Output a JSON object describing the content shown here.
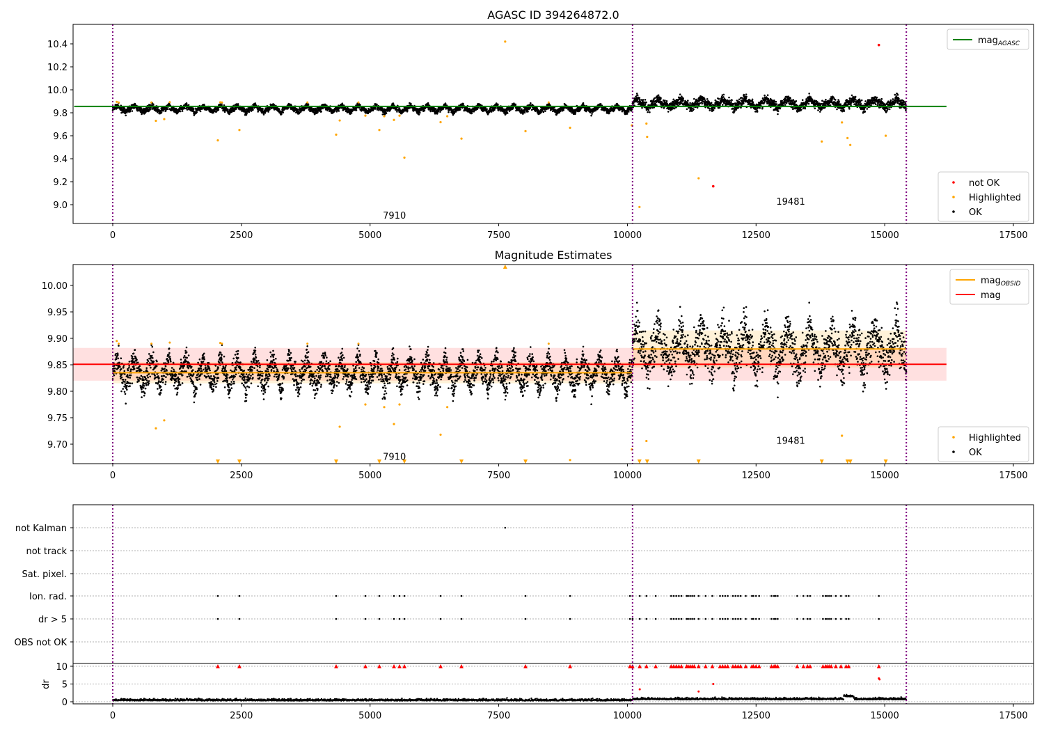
{
  "chart_data": [
    {
      "type": "scatter",
      "title": "AGASC ID 394264872.0",
      "ylim": [
        8.85,
        10.57
      ],
      "xlim": [
        -750,
        17900
      ],
      "yticks": [
        "9.0",
        "9.2",
        "9.4",
        "9.6",
        "9.8",
        "10.0",
        "10.2",
        "10.4"
      ],
      "xticks": [
        "0",
        "2500",
        "5000",
        "7500",
        "10000",
        "12500",
        "15000",
        "17500"
      ],
      "obs_boundaries": [
        0,
        10100,
        15420
      ],
      "obs_labels": [
        {
          "text": "7910",
          "x": 5000,
          "y": 8.91
        },
        {
          "text": "19481",
          "x": 12700,
          "y": 9.03
        }
      ],
      "mag_agasc": 9.855,
      "mag_agasc_xrange": [
        -750,
        16200
      ],
      "legend_top": [
        {
          "label": "mag",
          "sub": "AGASC",
          "color": "#008000"
        }
      ],
      "legend_bottom": [
        {
          "label": "not OK",
          "color": "#ff0000"
        },
        {
          "label": "Highlighted",
          "color": "#ffa500"
        },
        {
          "label": "OK",
          "color": "#000000"
        }
      ],
      "ok_series": {
        "segments": [
          {
            "x": [
              0,
              10100
            ],
            "mean": 9.835,
            "sigma": 0.012,
            "amp": 0.018
          },
          {
            "x": [
              10100,
              15420
            ],
            "mean": 9.88,
            "sigma": 0.02,
            "amp": 0.025
          }
        ]
      },
      "highlighted": [
        [
          838,
          9.73
        ],
        [
          1000,
          9.745
        ],
        [
          2042,
          9.56
        ],
        [
          2461,
          9.65
        ],
        [
          4341,
          9.61
        ],
        [
          4410,
          9.733
        ],
        [
          4909,
          9.775
        ],
        [
          5180,
          9.65
        ],
        [
          5275,
          9.77
        ],
        [
          5464,
          9.738
        ],
        [
          5572,
          9.775
        ],
        [
          5667,
          9.41
        ],
        [
          6370,
          9.718
        ],
        [
          6500,
          9.77
        ],
        [
          6776,
          9.575
        ],
        [
          7625,
          10.42
        ],
        [
          8020,
          9.64
        ],
        [
          8886,
          9.67
        ],
        [
          10087,
          9.69
        ],
        [
          10235,
          8.98
        ],
        [
          10370,
          9.706
        ],
        [
          10384,
          9.59
        ],
        [
          11384,
          9.23
        ],
        [
          13777,
          9.55
        ],
        [
          14169,
          9.716
        ],
        [
          14277,
          9.58
        ],
        [
          14331,
          9.52
        ],
        [
          15020,
          9.6
        ]
      ],
      "not_ok": [
        [
          14886,
          10.39
        ],
        [
          11668,
          9.16
        ]
      ]
    },
    {
      "type": "scatter",
      "title": "Magnitude Estimates",
      "ylim": [
        9.665,
        10.04
      ],
      "yticks": [
        "9.70",
        "9.75",
        "9.80",
        "9.85",
        "9.90",
        "9.95",
        "10.00"
      ],
      "xticks": [
        "0",
        "2500",
        "5000",
        "7500",
        "10000",
        "12500",
        "15000",
        "17500"
      ],
      "mag": 9.851,
      "mag_band": [
        9.82,
        9.882
      ],
      "mag_obsid": [
        {
          "x": [
            0,
            10100
          ],
          "value": 9.835,
          "band": [
            9.815,
            9.855
          ]
        },
        {
          "x": [
            10100,
            15420
          ],
          "value": 9.88,
          "band": [
            9.845,
            9.915
          ]
        }
      ],
      "obs_labels": [
        {
          "text": "7910",
          "x": 5000,
          "y": 9.677
        },
        {
          "text": "19481",
          "x": 12700,
          "y": 9.707
        }
      ],
      "legend_top": [
        {
          "label": "mag",
          "sub": "OBSID",
          "color": "#ffa500"
        },
        {
          "label": "mag",
          "sub": "",
          "color": "#ff0000"
        }
      ],
      "legend_bottom": [
        {
          "label": "Highlighted",
          "color": "#ffa500"
        },
        {
          "label": "OK",
          "color": "#000000"
        }
      ]
    },
    {
      "type": "scatter",
      "flag_categories": [
        "not Kalman",
        "not track",
        "Sat. pixel.",
        "Ion. rad.",
        "dr > 5",
        "OBS not OK"
      ],
      "dr_label": "dr",
      "dr_yticks": [
        "0",
        "5",
        "10"
      ],
      "dr_clip": 10,
      "xticks": [
        "0",
        "2500",
        "5000",
        "7500",
        "10000",
        "12500",
        "15000",
        "17500"
      ],
      "not_kalman_x": [
        7625
      ],
      "flag_events_x": [
        2042,
        2461,
        4341,
        4909,
        5180,
        5464,
        5572,
        5667,
        6370,
        6776,
        8020,
        8886,
        10050,
        10100,
        10240,
        10370,
        10550,
        10850,
        10900,
        10950,
        11000,
        11050,
        11150,
        11180,
        11220,
        11260,
        11300,
        11384,
        11520,
        11650,
        11800,
        11850,
        11900,
        11950,
        12050,
        12100,
        12150,
        12200,
        12300,
        12420,
        12450,
        12500,
        12560,
        12800,
        12850,
        12880,
        12920,
        13300,
        13420,
        13500,
        13550,
        13800,
        13850,
        13880,
        13920,
        13960,
        14050,
        14150,
        14250,
        14300,
        14886
      ],
      "dr_red_points": [
        [
          10240,
          3.5
        ],
        [
          11384,
          2.9
        ],
        [
          11668,
          5.0
        ],
        [
          14886,
          6.6
        ],
        [
          14900,
          6.3
        ]
      ]
    }
  ]
}
